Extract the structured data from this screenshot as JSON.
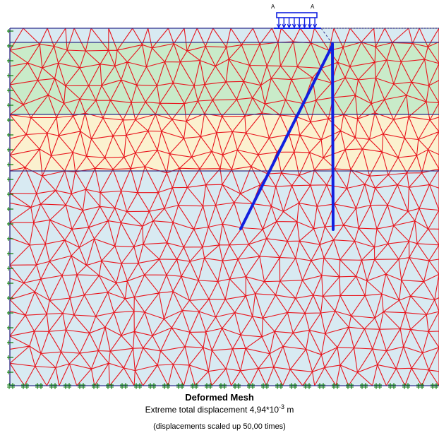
{
  "caption": {
    "title": "Deformed Mesh",
    "extreme_prefix": "Extreme total displacement 4,94*10",
    "extreme_exponent": "-3",
    "extreme_unit": " m",
    "scale_note": "(displacements scaled up 50,00 times)"
  },
  "load": {
    "label_left": "A",
    "label_right": "A"
  },
  "colors": {
    "mesh_line": "#e8141c",
    "layer_border": "#2b2e8c",
    "structure": "#1020e0",
    "layer_top": "#c9ebc9",
    "layer_middle": "#fbf1cf",
    "layer_base": "#d8eaf2",
    "fixity": "#0a7a0a"
  }
}
